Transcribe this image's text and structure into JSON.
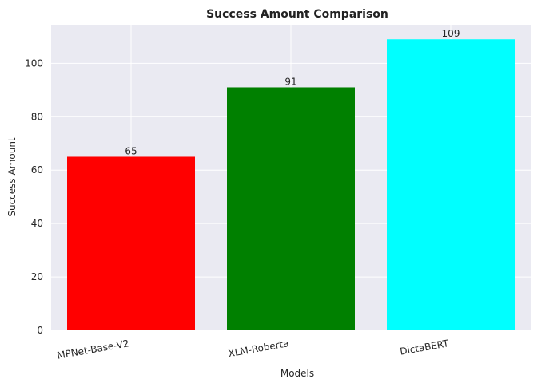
{
  "chart_data": {
    "type": "bar",
    "title": "Success Amount Comparison",
    "xlabel": "Models",
    "ylabel": "Success Amount",
    "categories": [
      "MPNet-Base-V2",
      "XLM-Roberta",
      "DictaBERT"
    ],
    "values": [
      65,
      91,
      109
    ],
    "data_labels": [
      "65",
      "91",
      "109"
    ],
    "colors": [
      "#ff0000",
      "#008000",
      "#00ffff"
    ],
    "ylim": [
      0,
      114.45
    ],
    "yticks": [
      0,
      20,
      40,
      60,
      80,
      100
    ],
    "ytick_labels": [
      "0",
      "20",
      "40",
      "60",
      "80",
      "100"
    ],
    "grid": true,
    "background": "#eaeaf2"
  }
}
